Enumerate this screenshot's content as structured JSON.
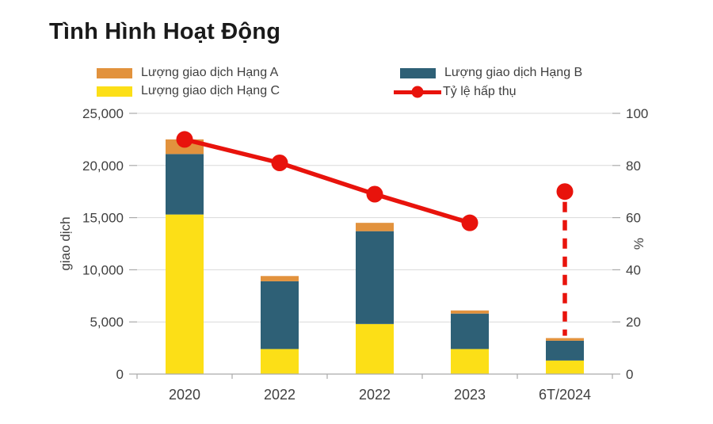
{
  "title": "Tình Hình Hoạt Động",
  "legend": {
    "hang_a": "Lượng giao dịch Hạng A",
    "hang_c": "Lượng giao dịch Hạng C",
    "hang_b": "Lượng giao dịch Hạng B",
    "absorption": "Tỷ lệ hấp thụ"
  },
  "colors": {
    "hang_a": "#e2923d",
    "hang_c": "#fcdf17",
    "hang_b": "#2e6076",
    "line": "#e8130c",
    "grid": "#d9d9d9",
    "axis": "#aaaaaa",
    "tick_text": "#3f3f3f",
    "title_text": "#1a1a1a"
  },
  "chart_data": {
    "type": "bar",
    "subtype": "stacked-bars-with-line",
    "title": "Tình Hình Hoạt Động",
    "categories": [
      "2020",
      "2022",
      "2022",
      "2023",
      "6T/2024"
    ],
    "series": [
      {
        "name": "Lượng giao dịch Hạng C",
        "color_key": "hang_c",
        "values": [
          15300,
          2400,
          4800,
          2400,
          1300
        ]
      },
      {
        "name": "Lượng giao dịch Hạng B",
        "color_key": "hang_b",
        "values": [
          5800,
          6500,
          8900,
          3400,
          1900
        ]
      },
      {
        "name": "Lượng giao dịch Hạng A",
        "color_key": "hang_a",
        "values": [
          1400,
          500,
          800,
          300,
          250
        ]
      }
    ],
    "bar_totals": [
      22500,
      9400,
      14500,
      6100,
      3450
    ],
    "line_series": {
      "name": "Tỷ lệ hấp thụ",
      "values": [
        90,
        81,
        69,
        58,
        70
      ],
      "solid_points": [
        0,
        1,
        2,
        3
      ],
      "isolated_point": 4,
      "drop_line_to_bar": true
    },
    "xlabel": "",
    "ylabel_left": "giao dịch",
    "ylabel_right": "%",
    "ylim_left": [
      0,
      25000
    ],
    "ylim_right": [
      0,
      100
    ],
    "yticks_left": [
      "0",
      "5,000",
      "10,000",
      "15,000",
      "20,000",
      "25,000"
    ],
    "yticks_right": [
      "0",
      "20",
      "40",
      "60",
      "80",
      "100"
    ],
    "grid": true,
    "legend_position": "top"
  }
}
